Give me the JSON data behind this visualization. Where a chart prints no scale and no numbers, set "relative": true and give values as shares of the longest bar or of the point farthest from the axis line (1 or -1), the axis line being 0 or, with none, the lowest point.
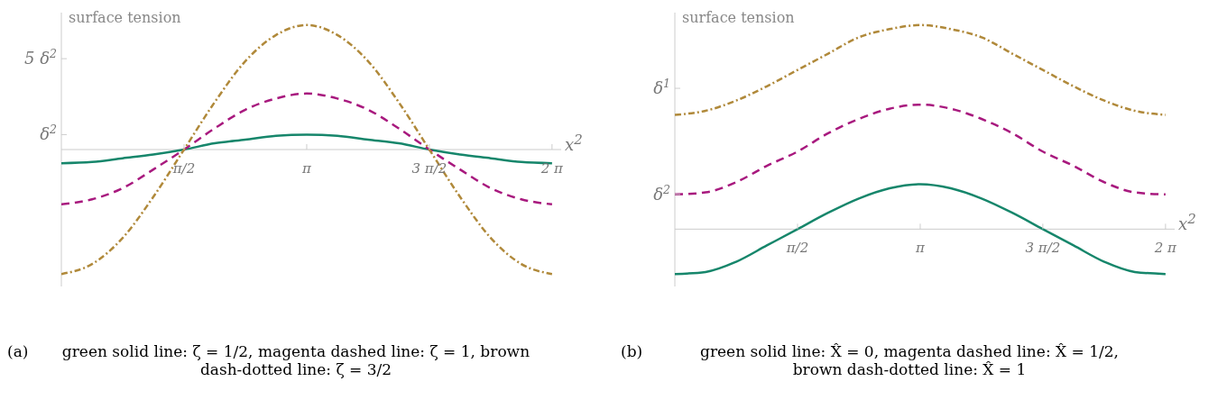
{
  "chart_data": [
    {
      "type": "line",
      "relative": true,
      "ylabel": "surface tension",
      "xlabel": "x$^{2}$",
      "annotations": [
        "δ$^{2}$",
        "5 δ$^{2}$",
        "(a)",
        "green solid line: ζ = 1/2, magenta dashed line: ζ = 1, brown dash-dotted line: ζ = 3/2"
      ],
      "x": [
        0,
        0.393,
        0.785,
        1.178,
        1.571,
        1.963,
        2.356,
        2.749,
        3.142,
        3.534,
        3.927,
        4.32,
        4.712,
        5.105,
        5.498,
        5.89,
        6.283
      ],
      "series": [
        {
          "color": "#16866b",
          "line_style": "solid",
          "values": [
            -0.11,
            -0.1,
            -0.07,
            -0.04,
            0,
            0.05,
            0.08,
            0.11,
            0.12,
            0.11,
            0.08,
            0.05,
            0,
            -0.04,
            -0.07,
            -0.1,
            -0.11
          ]
        },
        {
          "color": "#a8197e",
          "line_style": "dashed",
          "values": [
            -0.44,
            -0.4,
            -0.31,
            -0.16,
            0,
            0.17,
            0.32,
            0.41,
            0.45,
            0.41,
            0.32,
            0.17,
            0,
            -0.16,
            -0.31,
            -0.4,
            -0.44
          ]
        },
        {
          "color": "#b0893a",
          "line_style": "dashdot",
          "values": [
            -1,
            -0.92,
            -0.71,
            -0.38,
            0,
            0.38,
            0.71,
            0.92,
            1,
            0.92,
            0.71,
            0.38,
            0,
            -0.38,
            -0.71,
            -0.92,
            -1
          ]
        }
      ],
      "xlim": [
        0,
        6.4
      ],
      "xticks": [
        {
          "value": 1.571,
          "label": "π/2"
        },
        {
          "value": 3.142,
          "label": "π"
        },
        {
          "value": 4.712,
          "label": "3 π/2"
        },
        {
          "value": 6.283,
          "label": "2 π"
        }
      ],
      "grid": false,
      "legend": false,
      "marker": "none"
    },
    {
      "type": "line",
      "relative": true,
      "ylabel": "surface tension",
      "xlabel": "x$^{2}$",
      "annotations": [
        "δ$^{1}$",
        "δ$^{2}$",
        "(b)",
        "green solid line: X̂ = 0, magenta dashed line: X̂ = 1/2, brown dash-dotted line: X̂ = 1"
      ],
      "x": [
        0,
        0.393,
        0.785,
        1.178,
        1.571,
        1.963,
        2.356,
        2.749,
        3.142,
        3.534,
        3.927,
        4.32,
        4.712,
        5.105,
        5.498,
        5.89,
        6.283
      ],
      "series": [
        {
          "color": "#16866b",
          "line_style": "solid",
          "values": [
            -0.22,
            -0.21,
            -0.16,
            -0.08,
            0,
            0.08,
            0.15,
            0.2,
            0.22,
            0.2,
            0.15,
            0.08,
            0,
            -0.08,
            -0.16,
            -0.21,
            -0.22
          ]
        },
        {
          "color": "#a8197e",
          "line_style": "dashed",
          "values": [
            0.17,
            0.18,
            0.23,
            0.31,
            0.38,
            0.47,
            0.54,
            0.59,
            0.61,
            0.59,
            0.54,
            0.47,
            0.38,
            0.31,
            0.23,
            0.18,
            0.17
          ]
        },
        {
          "color": "#b0893a",
          "line_style": "dashdot",
          "values": [
            0.56,
            0.58,
            0.63,
            0.7,
            0.78,
            0.86,
            0.94,
            0.98,
            1,
            0.98,
            0.94,
            0.86,
            0.78,
            0.7,
            0.63,
            0.58,
            0.56
          ]
        }
      ],
      "xlim": [
        0,
        6.4
      ],
      "xticks": [
        {
          "value": 1.571,
          "label": "π/2"
        },
        {
          "value": 3.142,
          "label": "π"
        },
        {
          "value": 4.712,
          "label": "3 π/2"
        },
        {
          "value": 6.283,
          "label": "2 π"
        }
      ],
      "grid": false,
      "legend": false,
      "marker": "none"
    }
  ]
}
